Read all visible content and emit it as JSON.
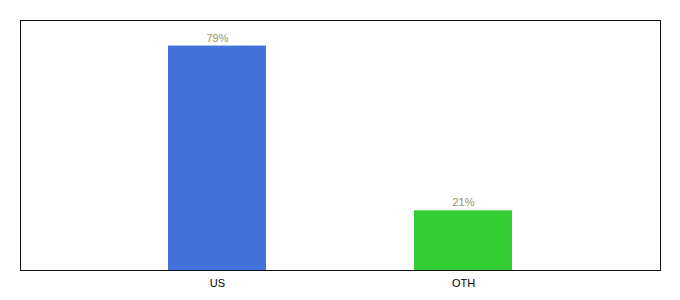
{
  "chart_data": {
    "type": "bar",
    "categories": [
      "US",
      "OTH"
    ],
    "values": [
      79,
      21
    ],
    "value_labels": [
      "79%",
      "21%"
    ],
    "colors": [
      "#4472db",
      "#33cc33"
    ],
    "ylim": [
      0,
      88
    ],
    "yticks": [],
    "data_labels": true,
    "tick_labels": "x",
    "grid": false
  }
}
